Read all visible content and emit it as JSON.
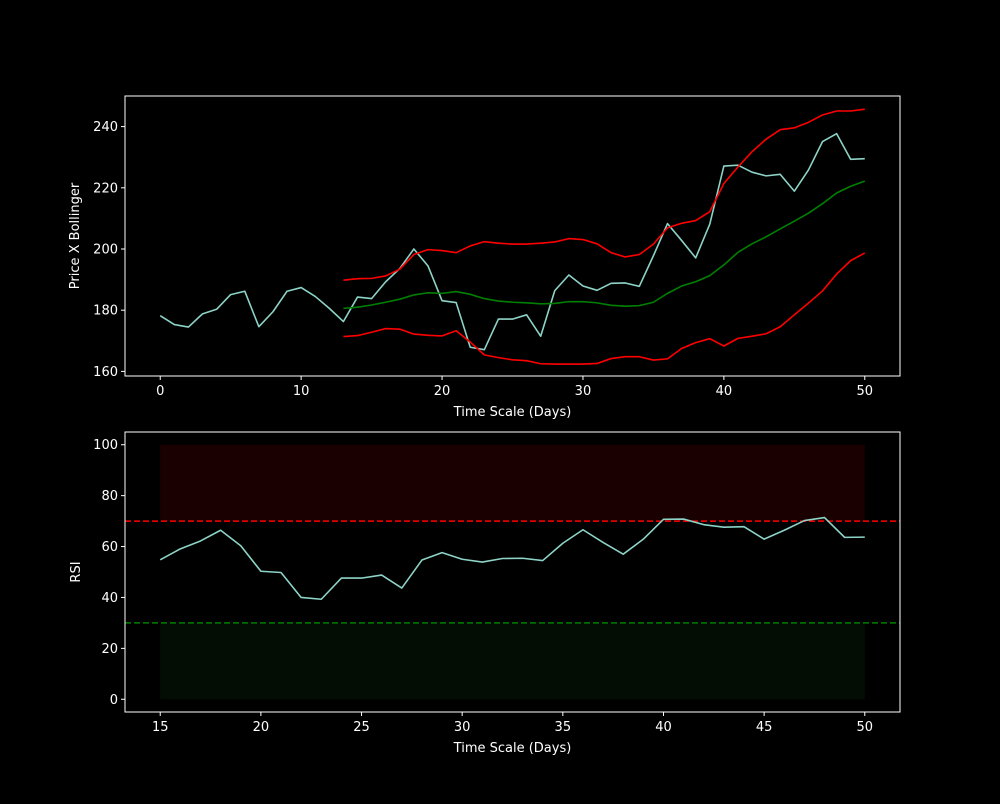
{
  "chart_data": [
    {
      "type": "line",
      "xlabel": "Time Scale (Days)",
      "ylabel": "Price X Bollinger",
      "xlim": [
        -2.5,
        52.5
      ],
      "ylim": [
        158.5,
        250
      ],
      "xticks": [
        0,
        10,
        20,
        30,
        40,
        50
      ],
      "yticks": [
        160,
        180,
        200,
        220,
        240
      ],
      "grid": false,
      "colors": {
        "price": "#8dd3c7",
        "band": "#ff0000",
        "sma": "#008000",
        "axes": "#ffffff"
      },
      "series": [
        {
          "role": "price",
          "x": [
            0,
            1,
            2,
            3,
            4,
            5,
            6,
            7,
            8,
            9,
            10,
            11,
            12,
            13,
            14,
            15,
            16,
            17,
            18,
            19,
            20,
            21,
            22,
            23,
            24,
            25,
            26,
            27,
            28,
            29,
            30,
            31,
            32,
            33,
            34,
            35,
            36,
            37,
            38,
            39,
            40,
            41,
            42,
            43,
            44,
            45,
            46,
            47,
            48,
            49,
            50
          ],
          "y": [
            178.2,
            175.3,
            174.5,
            178.8,
            180.3,
            185.1,
            186.2,
            174.6,
            179.5,
            186.2,
            187.4,
            184.5,
            180.6,
            176.3,
            184.3,
            183.8,
            189.3,
            193.6,
            200.0,
            194.5,
            183.1,
            182.5,
            167.9,
            167.1,
            177.1,
            177.1,
            178.5,
            171.5,
            186.4,
            191.5,
            187.9,
            186.5,
            188.8,
            188.9,
            187.8,
            197.8,
            208.3,
            202.8,
            197.1,
            208.1,
            227.1,
            227.4,
            225.1,
            223.9,
            224.4,
            218.9,
            225.8,
            235.1,
            237.7,
            229.3,
            229.5
          ]
        },
        {
          "role": "upper-band",
          "x": [
            13,
            14,
            15,
            16,
            17,
            18,
            19,
            20,
            21,
            22,
            23,
            24,
            25,
            26,
            27,
            28,
            29,
            30,
            31,
            32,
            33,
            34,
            35,
            36,
            37,
            38,
            39,
            40,
            41,
            42,
            43,
            44,
            45,
            46,
            47,
            48,
            49,
            50
          ],
          "y": [
            189.8,
            190.3,
            190.4,
            191.2,
            193.4,
            198.2,
            199.8,
            199.5,
            198.8,
            201.0,
            202.4,
            201.9,
            201.6,
            201.6,
            201.9,
            202.3,
            203.4,
            203.1,
            201.7,
            198.8,
            197.4,
            198.2,
            201.6,
            206.9,
            208.4,
            209.3,
            212.2,
            221.4,
            226.8,
            231.8,
            235.9,
            239.0,
            239.6,
            241.4,
            243.8,
            245.1,
            245.1,
            245.7
          ]
        },
        {
          "role": "middle-sma",
          "x": [
            13,
            14,
            15,
            16,
            17,
            18,
            19,
            20,
            21,
            22,
            23,
            24,
            25,
            26,
            27,
            28,
            29,
            30,
            31,
            32,
            33,
            34,
            35,
            36,
            37,
            38,
            39,
            40,
            41,
            42,
            43,
            44,
            45,
            46,
            47,
            48,
            49,
            50
          ],
          "y": [
            180.6,
            181.0,
            181.7,
            182.6,
            183.6,
            185.0,
            185.7,
            185.5,
            186.1,
            185.2,
            183.8,
            183.0,
            182.6,
            182.4,
            182.1,
            182.2,
            182.8,
            182.8,
            182.4,
            181.6,
            181.3,
            181.5,
            182.6,
            185.5,
            187.9,
            189.3,
            191.3,
            194.8,
            198.9,
            201.7,
            204.0,
            206.6,
            209.1,
            211.7,
            214.8,
            218.3,
            220.5,
            222.2
          ]
        },
        {
          "role": "lower-band",
          "x": [
            13,
            14,
            15,
            16,
            17,
            18,
            19,
            20,
            21,
            22,
            23,
            24,
            25,
            26,
            27,
            28,
            29,
            30,
            31,
            32,
            33,
            34,
            35,
            36,
            37,
            38,
            39,
            40,
            41,
            42,
            43,
            44,
            45,
            46,
            47,
            48,
            49,
            50
          ],
          "y": [
            171.4,
            171.7,
            172.8,
            174.0,
            173.8,
            172.2,
            171.8,
            171.6,
            173.3,
            169.6,
            165.4,
            164.5,
            163.8,
            163.5,
            162.5,
            162.4,
            162.4,
            162.4,
            162.6,
            164.2,
            164.8,
            164.8,
            163.7,
            164.1,
            167.5,
            169.4,
            170.7,
            168.3,
            170.8,
            171.5,
            172.3,
            174.6,
            178.5,
            182.3,
            186.3,
            191.8,
            196.2,
            198.7
          ]
        }
      ]
    },
    {
      "type": "line",
      "xlabel": "Time Scale (Days)",
      "ylabel": "RSI",
      "xlim": [
        13.25,
        51.75
      ],
      "ylim": [
        -5,
        105
      ],
      "xticks": [
        15,
        20,
        25,
        30,
        35,
        40,
        45,
        50
      ],
      "yticks": [
        0,
        20,
        40,
        60,
        80,
        100
      ],
      "grid": false,
      "colors": {
        "rsi": "#8dd3c7",
        "overbought": "#ff0000",
        "oversold": "#008000",
        "overbought_fill": "#1a0000",
        "oversold_fill": "#030d03",
        "axes": "#ffffff"
      },
      "overbought_level": 70,
      "oversold_level": 30,
      "shaded_regions": [
        {
          "role": "overbought-zone",
          "x": [
            15,
            50
          ],
          "y": [
            70,
            100
          ]
        },
        {
          "role": "oversold-zone",
          "x": [
            15,
            50
          ],
          "y": [
            0,
            30
          ]
        }
      ],
      "series": [
        {
          "role": "rsi",
          "x": [
            15,
            16,
            17,
            18,
            19,
            20,
            21,
            22,
            23,
            24,
            25,
            26,
            27,
            28,
            29,
            30,
            31,
            32,
            33,
            34,
            35,
            36,
            37,
            38,
            39,
            40,
            41,
            42,
            43,
            44,
            45,
            46,
            47,
            48,
            49,
            50
          ],
          "y": [
            54.8,
            59.1,
            62.2,
            66.4,
            60.3,
            50.3,
            49.8,
            40.0,
            39.3,
            47.6,
            47.6,
            48.8,
            43.7,
            54.7,
            57.6,
            55.0,
            53.9,
            55.3,
            55.4,
            54.5,
            61.3,
            66.6,
            61.6,
            57.0,
            62.9,
            70.7,
            70.8,
            68.6,
            67.6,
            67.8,
            62.9,
            66.4,
            70.2,
            71.4,
            63.6,
            63.7
          ]
        }
      ]
    }
  ]
}
